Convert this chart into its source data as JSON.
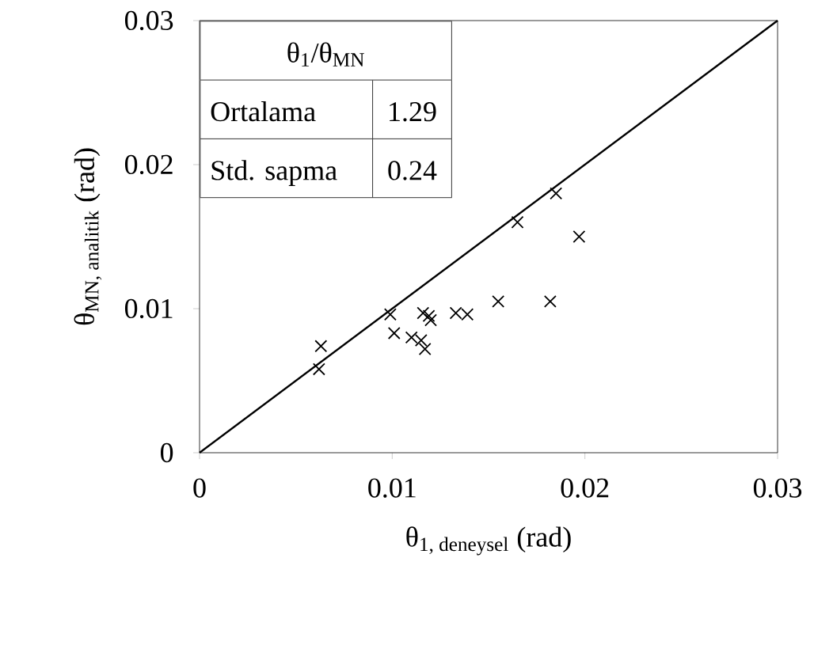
{
  "chart_data": {
    "type": "scatter",
    "xlabel": "\\text{θ}_{\\text{1, deneysel}}\\text{ (rad)}",
    "ylabel": "\\text{θ}_{\\text{MN, analitik}}\\text{ (rad)}",
    "xlim": [
      0,
      0.03
    ],
    "ylim": [
      0,
      0.03
    ],
    "xticks": [
      0,
      0.01,
      0.02,
      0.03
    ],
    "yticks": [
      0,
      0.01,
      0.02,
      0.03
    ],
    "grid": false,
    "marker": "cross",
    "series": [
      {
        "color": "#000000",
        "x": [
          0.0185,
          0.0165,
          0.0197,
          0.0155,
          0.0182,
          0.0133,
          0.0139,
          0.0116,
          0.0119,
          0.012,
          0.0099,
          0.0101,
          0.011,
          0.0115,
          0.0117,
          0.0063,
          0.0062
        ],
        "values": [
          0.018,
          0.016,
          0.015,
          0.0105,
          0.0105,
          0.0097,
          0.0096,
          0.0097,
          0.0095,
          0.0092,
          0.0096,
          0.0083,
          0.008,
          0.0078,
          0.0072,
          0.0074,
          0.0058
        ]
      },
      {
        "type": "line",
        "color": "#000000",
        "marker": "none",
        "x": [
          0,
          0.03
        ],
        "values": [
          0,
          0.03
        ]
      }
    ],
    "annotations": [
      "θ$_{1}$/θ$_{MN}$",
      "Ortalama",
      "1.29",
      "Std. sapma",
      "0.24"
    ]
  }
}
